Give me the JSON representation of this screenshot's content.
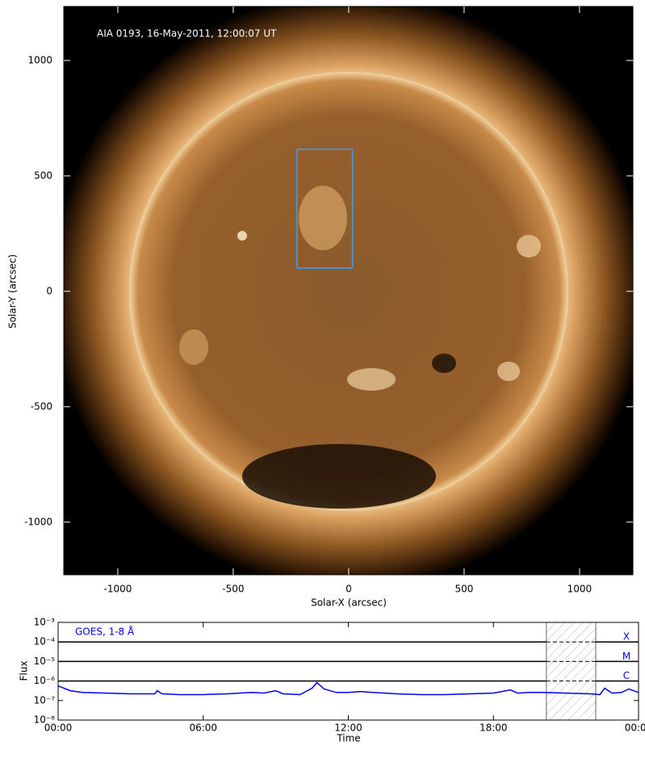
{
  "chart_data": [
    {
      "type": "image",
      "title": "AIA 0193, 16-May-2011, 12:00:07 UT",
      "xlabel": "Solar-X (arcsec)",
      "ylabel": "Solar-Y (arcsec)",
      "xlim": [
        -1234,
        1231
      ],
      "ylim": [
        -1228,
        1234
      ],
      "xticks": [
        -1000,
        -500,
        0,
        500,
        1000
      ],
      "yticks": [
        -1000,
        -500,
        0,
        500,
        1000
      ],
      "box": {
        "x": [
          -224,
          17
        ],
        "y": [
          101,
          615
        ],
        "color": "#4a8fd6"
      }
    },
    {
      "type": "line",
      "xlabel": "Time",
      "ylabel": "Flux",
      "log": true,
      "xlim": [
        0,
        24
      ],
      "xticks": [
        {
          "value": 0,
          "label": "00:00"
        },
        {
          "value": 6,
          "label": "06:00"
        },
        {
          "value": 12,
          "label": "12:00"
        },
        {
          "value": 18,
          "label": "18:00"
        },
        {
          "value": 24,
          "label": "00:00"
        }
      ],
      "ylim": [
        1e-08,
        0.001
      ],
      "yticks": [
        {
          "value": 1e-08,
          "label": "10⁻⁸"
        },
        {
          "value": 1e-07,
          "label": "10⁻⁷"
        },
        {
          "value": 1e-06,
          "label": "10⁻⁶"
        },
        {
          "value": 1e-05,
          "label": "10⁻⁵"
        },
        {
          "value": 0.0001,
          "label": "10⁻⁴"
        },
        {
          "value": 0.001,
          "label": "10⁻³"
        }
      ],
      "levels": [
        {
          "value": 0.0001,
          "label": "X"
        },
        {
          "value": 1e-05,
          "label": "M"
        },
        {
          "value": 1e-06,
          "label": "C"
        }
      ],
      "shade": [
        20.19,
        22.23
      ],
      "x": [
        0,
        0.5,
        1,
        2,
        3,
        4,
        4.1,
        4.3,
        5,
        6,
        7,
        8,
        8.5,
        9,
        9.3,
        10,
        10.5,
        10.7,
        11,
        11.5,
        12,
        12.5,
        13,
        14,
        15,
        16,
        17,
        18,
        18.7,
        19,
        19.5,
        20,
        21,
        22,
        22.4,
        22.6,
        22.9,
        23.3,
        23.6,
        24
      ],
      "series": [
        {
          "name": "GOES, 1-8 Å",
          "color": "#0000ee",
          "values": [
            5.6e-07,
            3.2e-07,
            2.6e-07,
            2.4e-07,
            2.2e-07,
            2.2e-07,
            3.2e-07,
            2.2e-07,
            2e-07,
            2e-07,
            2.2e-07,
            2.6e-07,
            2.4e-07,
            3.2e-07,
            2.2e-07,
            2e-07,
            4.3e-07,
            8.3e-07,
            3.9e-07,
            2.6e-07,
            2.6e-07,
            2.9e-07,
            2.6e-07,
            2.2e-07,
            2e-07,
            2e-07,
            2.2e-07,
            2.4e-07,
            3.5e-07,
            2.4e-07,
            2.6e-07,
            2.6e-07,
            2.4e-07,
            2.2e-07,
            2e-07,
            4.3e-07,
            2.4e-07,
            2.6e-07,
            3.9e-07,
            2.6e-07
          ]
        }
      ]
    }
  ]
}
